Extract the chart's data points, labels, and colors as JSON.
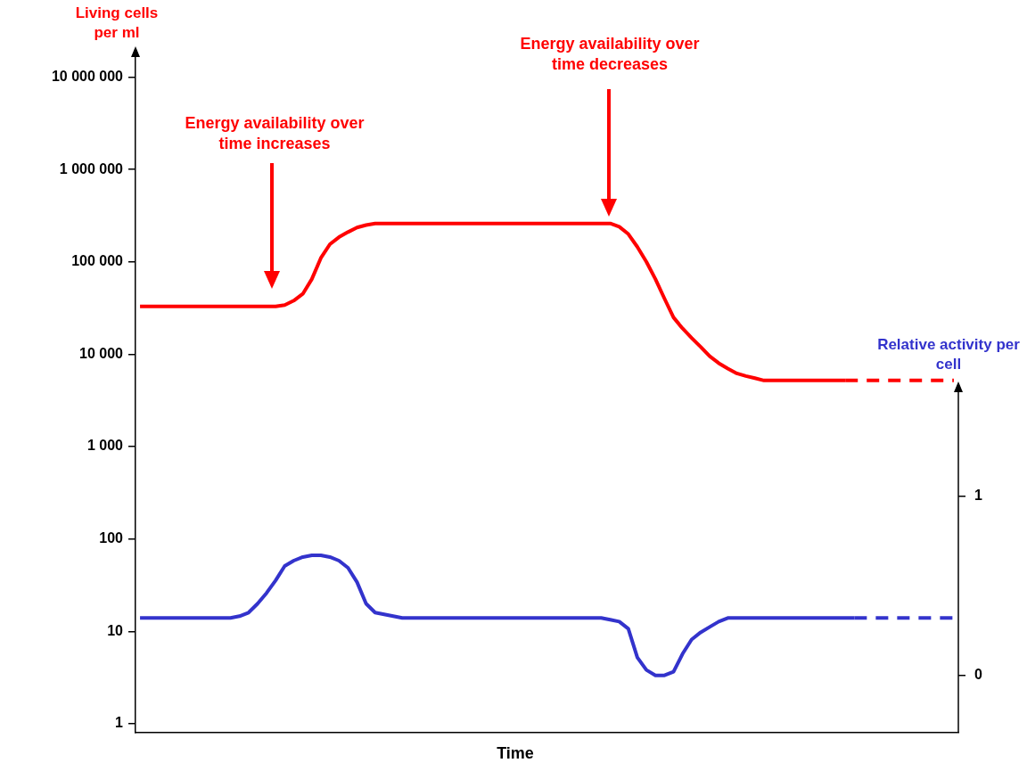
{
  "chart_data": {
    "type": "line",
    "xlabel": "Time",
    "ylabel": "Living cells per ml",
    "y2label": "Relative activity per cell",
    "annotations": [
      "Energy availability over time increases",
      "Energy availability over time decreases"
    ],
    "categories": [
      null,
      null,
      null,
      null,
      null,
      null,
      null,
      null,
      null,
      null,
      null,
      null,
      null,
      null,
      null,
      null,
      null,
      null,
      null,
      null,
      null,
      null,
      null,
      null,
      null,
      null,
      null,
      null,
      null,
      null,
      null,
      null,
      null,
      null,
      null,
      null,
      null,
      null,
      null,
      null,
      null,
      null,
      null,
      null,
      null,
      null,
      null,
      null,
      null,
      null,
      null,
      null,
      null,
      null,
      null,
      null,
      null,
      null,
      null,
      null,
      null,
      null,
      null,
      null,
      null,
      null,
      null,
      null,
      null,
      null,
      null,
      null,
      null,
      null,
      null,
      null,
      null,
      null,
      null,
      null,
      null,
      null,
      null,
      null,
      null,
      null,
      null,
      null,
      null,
      null,
      null
    ],
    "log": "y",
    "ylim": [
      0.8,
      18000000
    ],
    "yticks": [
      1,
      10,
      100,
      {
        "value": 1000,
        "label": "1 000"
      },
      {
        "value": 10000,
        "label": "10 000"
      },
      {
        "value": 100000,
        "label": "100 000"
      },
      {
        "value": 1000000,
        "label": "1 000 000"
      },
      {
        "value": 10000000,
        "label": "10 000 000"
      }
    ],
    "y2lim": [
      -0.32,
      3.47
    ],
    "y2ticks": [
      0,
      1
    ],
    "tick_labels": "y",
    "grid": false,
    "legend": false,
    "marker": "none",
    "series": [
      {
        "color": "#ff0000",
        "line_style": "solid",
        "values": [
          33000,
          33000,
          33000,
          33000,
          33000,
          33000,
          33000,
          33000,
          33000,
          33000,
          33000,
          33000,
          33000,
          33000,
          33000,
          33000,
          34000,
          38000,
          45000,
          65000,
          110000,
          155000,
          185000,
          210000,
          235000,
          250000,
          260000,
          260000,
          260000,
          260000,
          260000,
          260000,
          260000,
          260000,
          260000,
          260000,
          260000,
          260000,
          260000,
          260000,
          260000,
          260000,
          260000,
          260000,
          260000,
          260000,
          260000,
          260000,
          260000,
          260000,
          260000,
          260000,
          260000,
          240000,
          200000,
          145000,
          100000,
          65000,
          40000,
          25000,
          19000,
          15000,
          12000,
          9500,
          8000,
          7000,
          6200,
          5800,
          5500,
          5200,
          5200,
          5200,
          5200,
          5200,
          5200,
          5200,
          5200,
          5200,
          5200,
          null,
          null,
          null,
          null,
          null,
          null,
          null,
          null,
          null,
          null,
          null,
          null
        ]
      },
      {
        "color": "#ff0000",
        "line_style": "dashed",
        "values": [
          null,
          null,
          null,
          null,
          null,
          null,
          null,
          null,
          null,
          null,
          null,
          null,
          null,
          null,
          null,
          null,
          null,
          null,
          null,
          null,
          null,
          null,
          null,
          null,
          null,
          null,
          null,
          null,
          null,
          null,
          null,
          null,
          null,
          null,
          null,
          null,
          null,
          null,
          null,
          null,
          null,
          null,
          null,
          null,
          null,
          null,
          null,
          null,
          null,
          null,
          null,
          null,
          null,
          null,
          null,
          null,
          null,
          null,
          null,
          null,
          null,
          null,
          null,
          null,
          null,
          null,
          null,
          null,
          null,
          null,
          null,
          null,
          null,
          null,
          null,
          null,
          null,
          null,
          5200,
          5200,
          5200,
          5200,
          5200,
          5200,
          5200,
          5200,
          5200,
          5200,
          5200,
          5200,
          5200
        ]
      },
      {
        "color": "#3333cc",
        "line_style": "solid",
        "axis": "y2",
        "values": [
          0.32,
          0.32,
          0.32,
          0.32,
          0.32,
          0.32,
          0.32,
          0.32,
          0.32,
          0.32,
          0.32,
          0.33,
          0.35,
          0.4,
          0.46,
          0.53,
          0.61,
          0.64,
          0.66,
          0.67,
          0.67,
          0.66,
          0.64,
          0.6,
          0.52,
          0.4,
          0.35,
          0.34,
          0.33,
          0.32,
          0.32,
          0.32,
          0.32,
          0.32,
          0.32,
          0.32,
          0.32,
          0.32,
          0.32,
          0.32,
          0.32,
          0.32,
          0.32,
          0.32,
          0.32,
          0.32,
          0.32,
          0.32,
          0.32,
          0.32,
          0.32,
          0.32,
          0.31,
          0.3,
          0.26,
          0.1,
          0.03,
          0,
          0,
          0.02,
          0.12,
          0.2,
          0.24,
          0.27,
          0.3,
          0.32,
          0.32,
          0.32,
          0.32,
          0.32,
          0.32,
          0.32,
          0.32,
          0.32,
          0.32,
          0.32,
          0.32,
          0.32,
          0.32,
          0.32,
          null,
          null,
          null,
          null,
          null,
          null,
          null,
          null,
          null,
          null,
          null
        ]
      },
      {
        "color": "#3333cc",
        "line_style": "dashed",
        "axis": "y2",
        "values": [
          null,
          null,
          null,
          null,
          null,
          null,
          null,
          null,
          null,
          null,
          null,
          null,
          null,
          null,
          null,
          null,
          null,
          null,
          null,
          null,
          null,
          null,
          null,
          null,
          null,
          null,
          null,
          null,
          null,
          null,
          null,
          null,
          null,
          null,
          null,
          null,
          null,
          null,
          null,
          null,
          null,
          null,
          null,
          null,
          null,
          null,
          null,
          null,
          null,
          null,
          null,
          null,
          null,
          null,
          null,
          null,
          null,
          null,
          null,
          null,
          null,
          null,
          null,
          null,
          null,
          null,
          null,
          null,
          null,
          null,
          null,
          null,
          null,
          null,
          null,
          null,
          null,
          null,
          null,
          0.32,
          0.32,
          0.32,
          0.32,
          0.32,
          0.32,
          0.32,
          0.32,
          0.32,
          0.32,
          0.32,
          0.32
        ]
      }
    ]
  }
}
